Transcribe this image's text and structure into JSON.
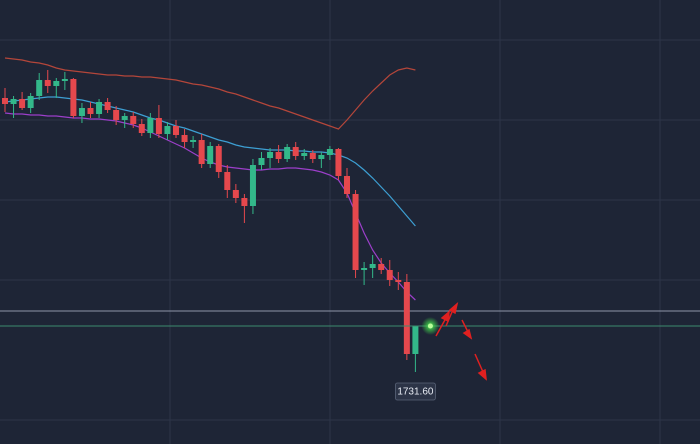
{
  "chart_data": {
    "type": "candlestick",
    "ylim": [
      1724.4,
      1768.8
    ],
    "up_color": "#33b88a",
    "down_color": "#e5484d",
    "open": [
      1759.0,
      1758.4,
      1758.9,
      1758.0,
      1759.2,
      1760.8,
      1760.2,
      1760.7,
      1760.9,
      1757.2,
      1758.0,
      1757.4,
      1758.6,
      1757.8,
      1756.8,
      1757.2,
      1756.4,
      1755.5,
      1757.0,
      1755.4,
      1756.2,
      1755.3,
      1754.6,
      1754.8,
      1752.4,
      1754.2,
      1751.6,
      1749.8,
      1749.0,
      1748.2,
      1752.3,
      1753.0,
      1753.6,
      1752.9,
      1754.1,
      1753.2,
      1753.5,
      1752.9,
      1753.3,
      1753.9,
      1751.2,
      1749.4,
      1741.8,
      1742.0,
      1742.4,
      1741.8,
      1740.8,
      1740.6,
      1733.4
    ],
    "high": [
      1760.0,
      1759.2,
      1759.6,
      1759.5,
      1761.5,
      1761.8,
      1761.0,
      1761.6,
      1761.0,
      1758.5,
      1758.6,
      1758.9,
      1759.0,
      1758.2,
      1757.5,
      1757.6,
      1756.9,
      1757.5,
      1758.3,
      1756.6,
      1756.8,
      1755.9,
      1755.2,
      1755.4,
      1754.6,
      1754.4,
      1752.3,
      1750.4,
      1749.4,
      1752.9,
      1753.6,
      1754.0,
      1754.3,
      1754.4,
      1754.6,
      1753.9,
      1753.8,
      1753.6,
      1754.2,
      1754.0,
      1752.0,
      1749.8,
      1742.6,
      1743.3,
      1743.0,
      1742.8,
      1741.6,
      1741.4,
      1735.8
    ],
    "low": [
      1757.6,
      1757.0,
      1757.8,
      1757.5,
      1758.8,
      1759.5,
      1759.0,
      1759.8,
      1757.0,
      1756.5,
      1757.0,
      1757.0,
      1757.5,
      1756.3,
      1756.0,
      1756.0,
      1755.2,
      1755.0,
      1755.0,
      1754.8,
      1755.0,
      1754.0,
      1754.0,
      1752.0,
      1752.0,
      1751.0,
      1749.0,
      1748.5,
      1746.5,
      1747.4,
      1751.8,
      1752.0,
      1752.5,
      1752.6,
      1752.8,
      1752.8,
      1752.5,
      1752.0,
      1752.8,
      1750.8,
      1749.0,
      1741.0,
      1740.3,
      1741.0,
      1741.4,
      1740.2,
      1739.8,
      1732.8,
      1731.6
    ],
    "close": [
      1758.4,
      1758.9,
      1758.0,
      1759.2,
      1760.8,
      1760.2,
      1760.7,
      1760.9,
      1757.2,
      1758.0,
      1757.4,
      1758.6,
      1757.8,
      1756.8,
      1757.2,
      1756.4,
      1755.5,
      1757.0,
      1755.4,
      1756.2,
      1755.3,
      1754.6,
      1754.8,
      1752.4,
      1754.2,
      1751.6,
      1749.8,
      1749.0,
      1748.2,
      1752.3,
      1753.0,
      1753.6,
      1752.9,
      1754.1,
      1753.2,
      1753.5,
      1752.9,
      1753.3,
      1753.9,
      1751.2,
      1749.4,
      1741.8,
      1742.0,
      1742.4,
      1741.8,
      1740.8,
      1740.6,
      1733.4,
      1736.2
    ],
    "lines": [
      {
        "color": "#b4463a",
        "values": [
          1763.0,
          1762.9,
          1762.8,
          1762.6,
          1762.5,
          1762.3,
          1762.0,
          1761.8,
          1761.7,
          1761.6,
          1761.5,
          1761.4,
          1761.3,
          1761.3,
          1761.2,
          1761.2,
          1761.1,
          1761.1,
          1761.0,
          1760.9,
          1760.8,
          1760.6,
          1760.4,
          1760.3,
          1760.1,
          1759.9,
          1759.6,
          1759.4,
          1759.1,
          1758.8,
          1758.5,
          1758.2,
          1758.0,
          1757.7,
          1757.4,
          1757.1,
          1756.8,
          1756.5,
          1756.2,
          1755.9,
          1756.8,
          1757.8,
          1758.8,
          1759.7,
          1760.5,
          1761.3,
          1761.8,
          1762.0,
          1761.8
        ]
      },
      {
        "color": "#3d9fd3",
        "values": [
          1758.6,
          1758.7,
          1758.8,
          1758.9,
          1759.0,
          1759.1,
          1759.1,
          1759.0,
          1758.9,
          1758.8,
          1758.6,
          1758.4,
          1758.2,
          1758.0,
          1757.8,
          1757.6,
          1757.3,
          1757.0,
          1756.8,
          1756.5,
          1756.2,
          1756.0,
          1755.7,
          1755.4,
          1755.1,
          1754.8,
          1754.6,
          1754.3,
          1754.1,
          1754.0,
          1753.9,
          1753.8,
          1753.8,
          1753.8,
          1753.7,
          1753.7,
          1753.6,
          1753.6,
          1753.5,
          1753.3,
          1753.0,
          1752.5,
          1751.8,
          1751.0,
          1750.1,
          1749.2,
          1748.2,
          1747.2,
          1746.2
        ]
      },
      {
        "color": "#9c3fca",
        "values": [
          1757.5,
          1757.4,
          1757.4,
          1757.3,
          1757.3,
          1757.2,
          1757.2,
          1757.1,
          1757.0,
          1757.0,
          1756.9,
          1756.9,
          1756.8,
          1756.7,
          1756.5,
          1756.3,
          1756.0,
          1755.6,
          1755.2,
          1754.8,
          1754.4,
          1754.0,
          1753.5,
          1753.0,
          1752.6,
          1752.3,
          1752.1,
          1752.0,
          1751.9,
          1751.8,
          1751.8,
          1751.9,
          1751.9,
          1752.0,
          1752.0,
          1751.9,
          1751.8,
          1751.6,
          1751.3,
          1750.8,
          1749.5,
          1747.5,
          1745.5,
          1743.8,
          1742.5,
          1741.5,
          1740.6,
          1739.6,
          1738.8
        ]
      }
    ],
    "low_label": {
      "value": 1731.6,
      "label": "1731.60"
    }
  }
}
